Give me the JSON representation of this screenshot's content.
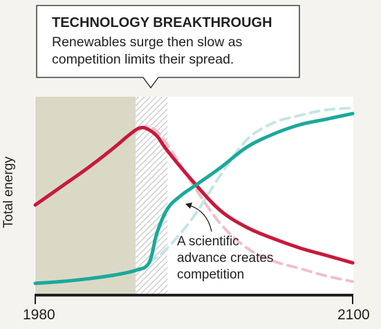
{
  "callout": {
    "title": "TECHNOLOGY BREAKTHROUGH",
    "body": "Renewables surge then slow as competition limits their spread."
  },
  "annotation": {
    "line1": "A scientific",
    "line2": "advance creates",
    "line3": "competition"
  },
  "colors": {
    "background": "#f4f3ee",
    "shaded_period": "#dad9c6",
    "fossil": "#c8193c",
    "renewables": "#1aa99b",
    "fossil_ghost": "#f0bfc9",
    "renewables_ghost": "#c3e6e4",
    "axis": "#231f20"
  },
  "chart_data": {
    "type": "line",
    "title": "",
    "xlabel": "",
    "ylabel": "Total energy",
    "xlim": [
      1980,
      2100
    ],
    "ylim": [
      0,
      100
    ],
    "x_ticks": [
      "1980",
      "2100"
    ],
    "grid": false,
    "legend": "none",
    "shaded_regions": [
      {
        "from": 1980,
        "to": 2018,
        "style": "solid"
      },
      {
        "from": 2018,
        "to": 2030,
        "style": "hatched"
      }
    ],
    "series": [
      {
        "style": "solid",
        "color": "#c8193c",
        "x": [
          1980,
          1990,
          2000,
          2010,
          2015,
          2019,
          2022,
          2026,
          2030,
          2040,
          2050,
          2060,
          2070,
          2080,
          2090,
          2100
        ],
        "y": [
          42,
          52,
          62,
          73,
          79,
          83,
          83,
          79,
          71,
          54,
          39,
          30,
          24,
          19,
          15,
          11
        ]
      },
      {
        "style": "solid",
        "color": "#1aa99b",
        "x": [
          1980,
          1990,
          2000,
          2010,
          2018,
          2023,
          2026,
          2030,
          2035,
          2040,
          2050,
          2060,
          2070,
          2080,
          2090,
          2100
        ],
        "y": [
          0,
          1,
          2.5,
          4.5,
          7,
          11,
          27,
          40,
          47,
          52,
          62,
          73,
          80,
          85,
          88,
          91
        ]
      },
      {
        "style": "dashed",
        "color": "#f0bfc9",
        "x": [
          2019,
          2023,
          2027,
          2032,
          2040,
          2050,
          2060,
          2070,
          2080,
          2090,
          2100
        ],
        "y": [
          83,
          84,
          80,
          70,
          52,
          32,
          19,
          12,
          8,
          4,
          1
        ]
      },
      {
        "style": "dashed",
        "color": "#c3e6e4",
        "x": [
          2023,
          2030,
          2040,
          2050,
          2060,
          2070,
          2080,
          2090,
          2100
        ],
        "y": [
          11,
          19,
          36,
          58,
          77,
          86,
          90,
          93,
          94
        ]
      }
    ]
  }
}
